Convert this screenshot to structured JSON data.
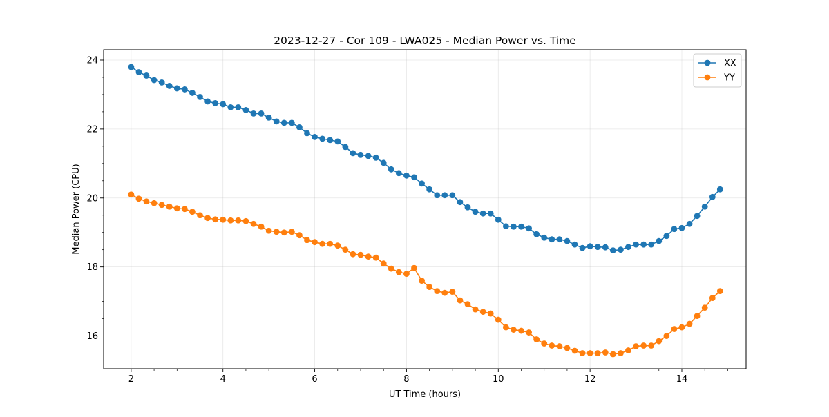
{
  "chart_data": {
    "type": "line",
    "title": "2023-12-27 - Cor 109 - LWA025 - Median Power vs. Time",
    "xlabel": "UT Time (hours)",
    "ylabel": "Median Power (CPU)",
    "xlim": [
      1.4,
      15.4
    ],
    "ylim": [
      15.05,
      24.3
    ],
    "xticks": [
      2,
      4,
      6,
      8,
      10,
      12,
      14
    ],
    "xtick_labels": [
      "2",
      "4",
      "6",
      "8",
      "10",
      "12",
      "14"
    ],
    "yticks": [
      16,
      18,
      20,
      22,
      24
    ],
    "ytick_labels": [
      "16",
      "18",
      "20",
      "22",
      "24"
    ],
    "grid": true,
    "legend_position": "top-right",
    "x": [
      2.0,
      2.167,
      2.333,
      2.5,
      2.667,
      2.833,
      3.0,
      3.167,
      3.333,
      3.5,
      3.667,
      3.833,
      4.0,
      4.167,
      4.333,
      4.5,
      4.667,
      4.833,
      5.0,
      5.167,
      5.333,
      5.5,
      5.667,
      5.833,
      6.0,
      6.167,
      6.333,
      6.5,
      6.667,
      6.833,
      7.0,
      7.167,
      7.333,
      7.5,
      7.667,
      7.833,
      8.0,
      8.167,
      8.333,
      8.5,
      8.667,
      8.833,
      9.0,
      9.167,
      9.333,
      9.5,
      9.667,
      9.833,
      10.0,
      10.167,
      10.333,
      10.5,
      10.667,
      10.833,
      11.0,
      11.167,
      11.333,
      11.5,
      11.667,
      11.833,
      12.0,
      12.167,
      12.333,
      12.5,
      12.667,
      12.833,
      13.0,
      13.167,
      13.333,
      13.5,
      13.667,
      13.833,
      14.0,
      14.167,
      14.333,
      14.5,
      14.667,
      14.833
    ],
    "series": [
      {
        "name": "XX",
        "color": "#1f77b4",
        "values": [
          23.8,
          23.65,
          23.55,
          23.42,
          23.35,
          23.25,
          23.18,
          23.15,
          23.05,
          22.93,
          22.8,
          22.75,
          22.72,
          22.63,
          22.63,
          22.55,
          22.45,
          22.45,
          22.33,
          22.22,
          22.18,
          22.18,
          22.05,
          21.88,
          21.77,
          21.72,
          21.68,
          21.64,
          21.48,
          21.3,
          21.25,
          21.22,
          21.17,
          21.02,
          20.83,
          20.72,
          20.65,
          20.6,
          20.42,
          20.25,
          20.08,
          20.08,
          20.08,
          19.88,
          19.73,
          19.6,
          19.55,
          19.55,
          19.37,
          19.18,
          19.17,
          19.17,
          19.12,
          18.95,
          18.85,
          18.8,
          18.8,
          18.75,
          18.65,
          18.55,
          18.6,
          18.58,
          18.57,
          18.48,
          18.5,
          18.58,
          18.65,
          18.65,
          18.65,
          18.75,
          18.9,
          19.1,
          19.13,
          19.25,
          19.48,
          19.75,
          20.03,
          20.25
        ]
      },
      {
        "name": "YY",
        "color": "#ff7f0e",
        "values": [
          20.1,
          19.98,
          19.9,
          19.85,
          19.8,
          19.75,
          19.7,
          19.68,
          19.6,
          19.5,
          19.42,
          19.38,
          19.37,
          19.35,
          19.35,
          19.33,
          19.25,
          19.17,
          19.05,
          19.02,
          19.0,
          19.02,
          18.92,
          18.78,
          18.72,
          18.67,
          18.67,
          18.62,
          18.5,
          18.37,
          18.35,
          18.3,
          18.27,
          18.1,
          17.95,
          17.85,
          17.8,
          17.97,
          17.6,
          17.42,
          17.3,
          17.25,
          17.28,
          17.03,
          16.92,
          16.77,
          16.7,
          16.65,
          16.47,
          16.25,
          16.18,
          16.15,
          16.1,
          15.9,
          15.78,
          15.72,
          15.7,
          15.65,
          15.57,
          15.5,
          15.5,
          15.5,
          15.52,
          15.47,
          15.5,
          15.58,
          15.7,
          15.72,
          15.72,
          15.85,
          16.0,
          16.2,
          16.25,
          16.35,
          16.58,
          16.82,
          17.1,
          17.3
        ]
      }
    ]
  }
}
